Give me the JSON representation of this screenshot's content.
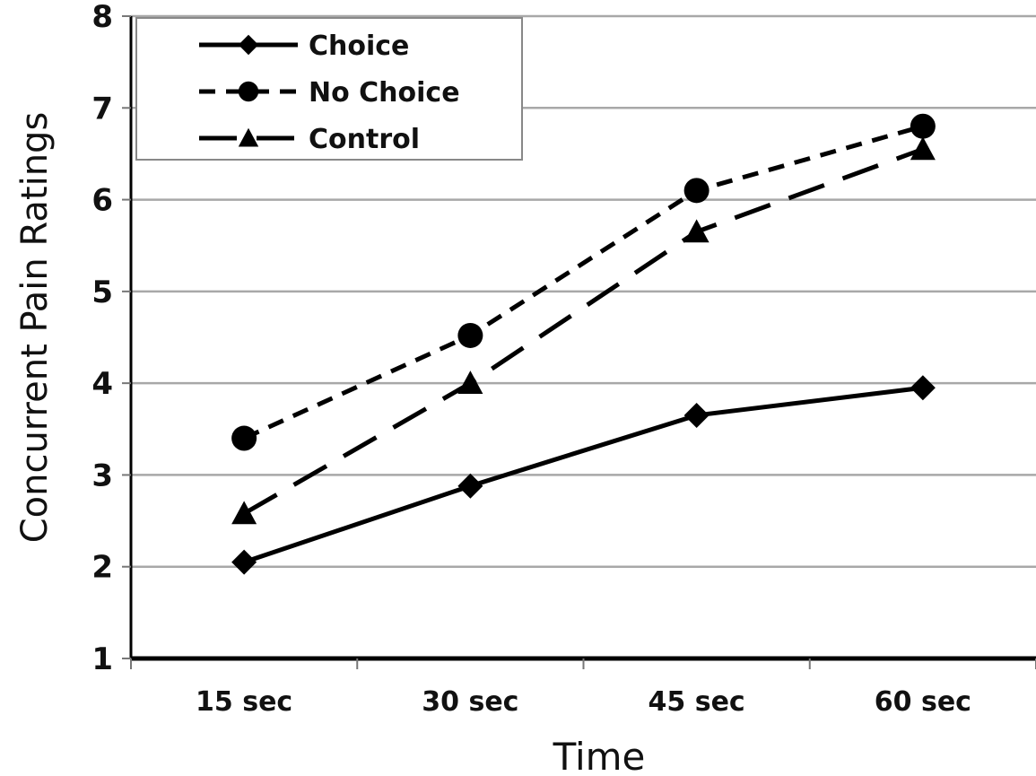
{
  "chart_data": {
    "type": "line",
    "title": "",
    "xlabel": "Time",
    "ylabel": "Concurrent Pain Ratings",
    "categories": [
      "15 sec",
      "30 sec",
      "45 sec",
      "60 sec"
    ],
    "ylim": [
      1,
      8
    ],
    "yticks": [
      "1",
      "2",
      "3",
      "4",
      "5",
      "6",
      "7",
      "8"
    ],
    "grid": "horizontal",
    "legend_position": "top-left",
    "series": [
      {
        "name": "Choice",
        "values": [
          2.05,
          2.88,
          3.65,
          3.95
        ],
        "marker": "diamond",
        "line_style": "solid",
        "color": "#000000"
      },
      {
        "name": "No Choice",
        "values": [
          3.4,
          4.52,
          6.1,
          6.8
        ],
        "marker": "circle",
        "line_style": "short-dash",
        "color": "#000000"
      },
      {
        "name": "Control",
        "values": [
          2.58,
          4.0,
          5.65,
          6.55
        ],
        "marker": "triangle",
        "line_style": "long-dash",
        "color": "#000000"
      }
    ]
  }
}
